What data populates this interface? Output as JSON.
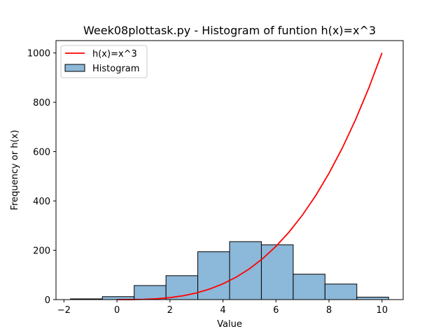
{
  "chart_data": {
    "type": "bar",
    "title": "Week08plottask.py - Histogram of funtion h(x)=x^3",
    "xlabel": "Value",
    "ylabel": "Frequency or h(x)",
    "xlim": [
      -2.3,
      10.8
    ],
    "ylim": [
      0,
      1050
    ],
    "xticks": [
      -2,
      0,
      2,
      4,
      6,
      8,
      10
    ],
    "yticks": [
      0,
      200,
      400,
      600,
      800,
      1000
    ],
    "legend_position": "top-left",
    "grid": false,
    "histogram": {
      "name": "Histogram",
      "color": "#8cb8d9",
      "edge_color": "#000000",
      "bin_edges": [
        -1.75,
        -0.55,
        0.65,
        1.85,
        3.05,
        4.25,
        5.45,
        6.65,
        7.85,
        9.05,
        10.25
      ],
      "counts": [
        3,
        12,
        57,
        97,
        194,
        235,
        222,
        103,
        63,
        10
      ]
    },
    "curve": {
      "name": "h(x)=x^3",
      "color": "#ff0000",
      "x": [
        0,
        0.5,
        1,
        1.5,
        2,
        2.5,
        3,
        3.5,
        4,
        4.5,
        5,
        5.5,
        6,
        6.5,
        7,
        7.5,
        8,
        8.5,
        9,
        9.5,
        10
      ],
      "y": [
        0,
        0.125,
        1,
        3.375,
        8,
        15.625,
        27,
        42.875,
        64,
        91.125,
        125,
        166.375,
        216,
        274.625,
        343,
        421.875,
        512,
        614.125,
        729,
        857.375,
        1000
      ]
    }
  }
}
